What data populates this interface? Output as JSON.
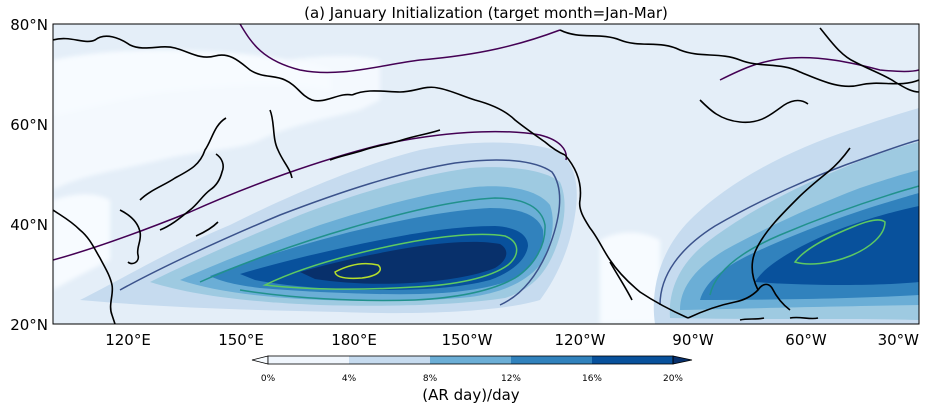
{
  "title": "(a) January Initialization (target month=Jan-Mar)",
  "map": {
    "region": "North Pacific and North Atlantic",
    "lon_range": [
      100,
      330
    ],
    "lat_range": [
      20,
      80
    ],
    "lat_ticks": [
      {
        "value": 20,
        "label": "20°N"
      },
      {
        "value": 40,
        "label": "40°N"
      },
      {
        "value": 60,
        "label": "60°N"
      },
      {
        "value": 80,
        "label": "80°N"
      }
    ],
    "lon_ticks": [
      {
        "value": 120,
        "label": "120°E"
      },
      {
        "value": 150,
        "label": "150°E"
      },
      {
        "value": 180,
        "label": "180°E"
      },
      {
        "value": 210,
        "label": "150°W"
      },
      {
        "value": 240,
        "label": "120°W"
      },
      {
        "value": 270,
        "label": "90°W"
      },
      {
        "value": 300,
        "label": "60°W"
      },
      {
        "value": 330,
        "label": "30°W"
      }
    ],
    "fill_colors": [
      "#f7fbff",
      "#deebf7",
      "#c6dbef",
      "#9ecae1",
      "#6baed6",
      "#3182bd",
      "#2171b5",
      "#08519c",
      "#08306b"
    ],
    "contour_colors": [
      "#440154",
      "#3b528b",
      "#21918c",
      "#5ec962",
      "#b5de2b"
    ],
    "coast_color": "#000000"
  },
  "colorbar": {
    "label": "(AR day)/day",
    "ticks": [
      "0%",
      "4%",
      "8%",
      "12%",
      "16%",
      "20%"
    ],
    "colors": [
      "#f0f6fd",
      "#c6dbef",
      "#6baed6",
      "#3182bd",
      "#08519c"
    ],
    "extend": "both"
  }
}
